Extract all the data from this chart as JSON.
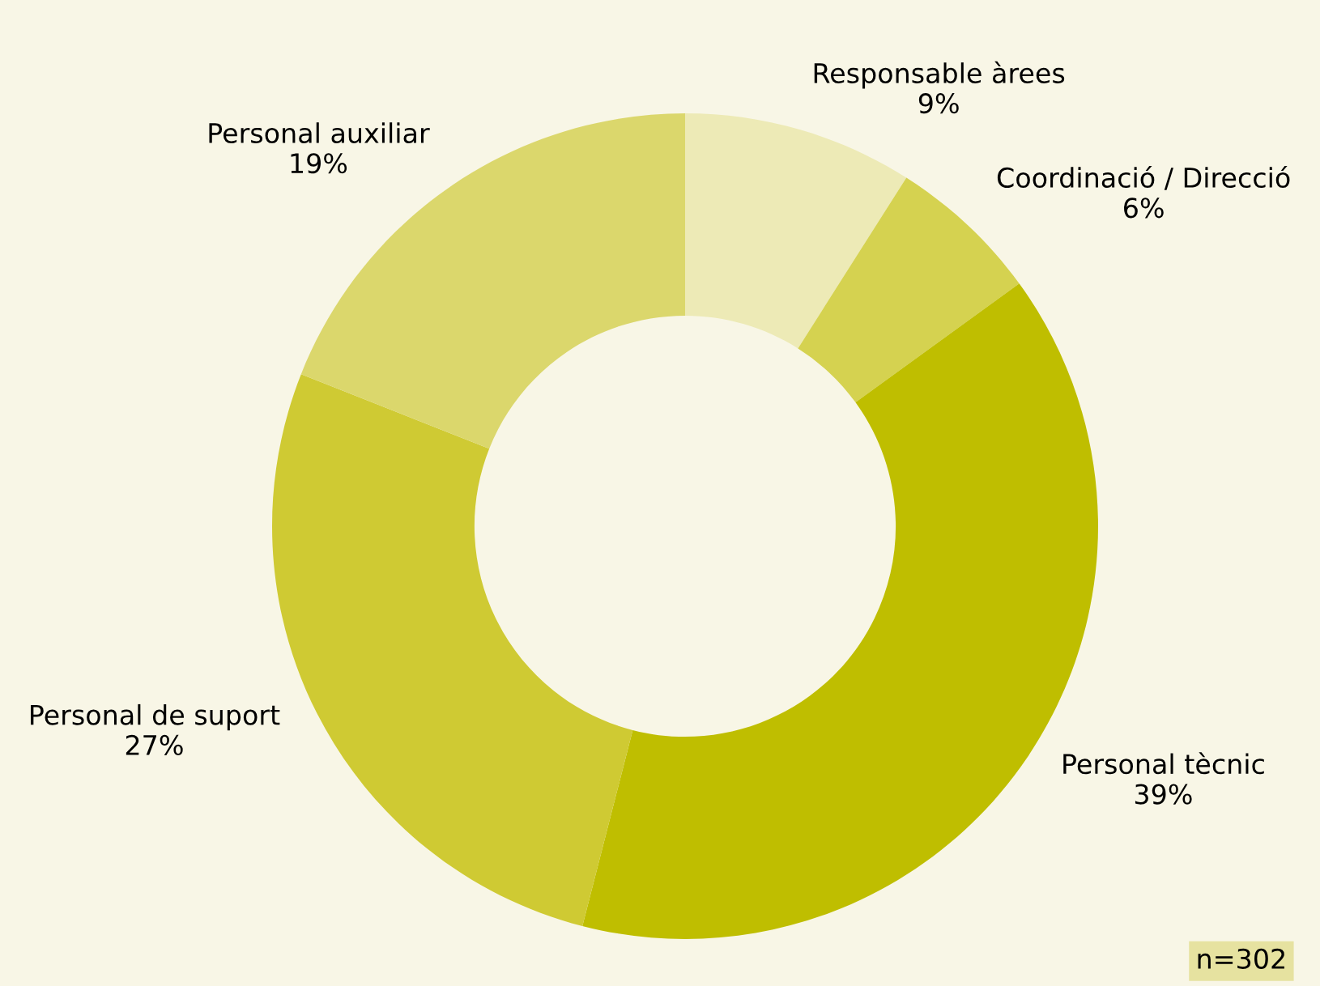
{
  "chart_data": {
    "type": "donut",
    "categories": [
      "Responsable àrees",
      "Coordinació / Direcció",
      "Personal tècnic",
      "Personal de suport",
      "Personal auxiliar"
    ],
    "values": [
      9,
      6,
      39,
      27,
      19
    ],
    "value_labels": [
      "9%",
      "6%",
      "39%",
      "27%",
      "19%"
    ],
    "colors": [
      "#edeab6",
      "#d5d250",
      "#bfbe00",
      "#cfca33",
      "#dbd76c"
    ],
    "annotations": [
      "n=302"
    ],
    "legend": false
  }
}
